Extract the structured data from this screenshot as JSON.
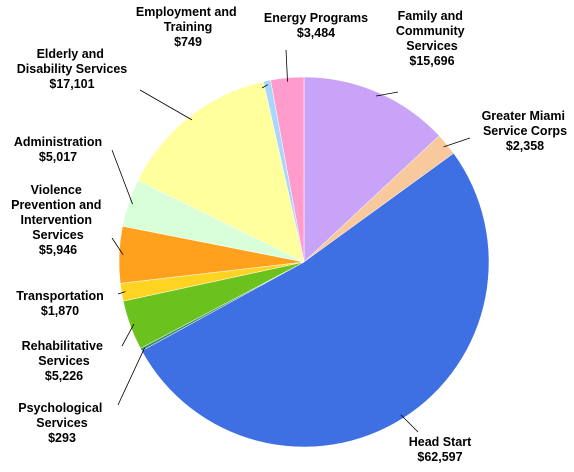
{
  "chart_data": {
    "type": "pie",
    "categories": [
      "Family and Community Services",
      "Greater Miami Service Corps",
      "Head Start",
      "Psychological Services",
      "Rehabilitative Services",
      "Transportation",
      "Violence Prevention and Intervention Services",
      "Administration",
      "Elderly and Disability Services",
      "Employment and Training",
      "Energy Programs"
    ],
    "values": [
      15696,
      2358,
      62597,
      293,
      5226,
      1870,
      5946,
      5017,
      17101,
      749,
      3484
    ],
    "value_labels": [
      "$15,696",
      "$2,358",
      "$62,597",
      "$293",
      "$5,226",
      "$1,870",
      "$5,946",
      "$5,017",
      "$17,101",
      "$749",
      "$3,484"
    ],
    "colors": [
      "#c9a3f7",
      "#f8c99c",
      "#3e6fe3",
      "#3d8f73",
      "#6cc21c",
      "#ffd322",
      "#ffa11c",
      "#d9ffd9",
      "#ffff9e",
      "#a8d6ff",
      "#ff9ccc"
    ]
  }
}
